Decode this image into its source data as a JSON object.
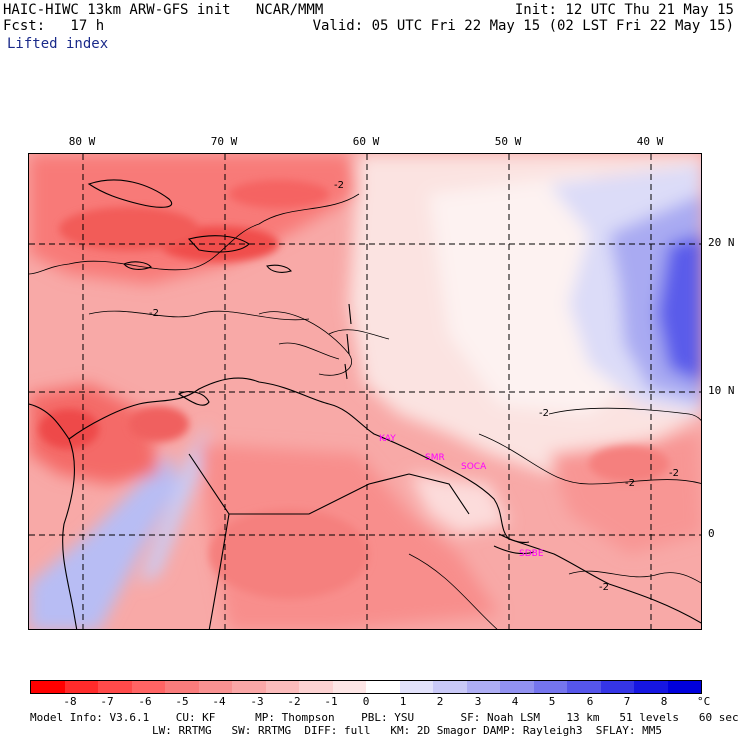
{
  "header": {
    "model_title": "HAIC-HIWC 13km ARW-GFS init   NCAR/MMM",
    "init_time": "Init: 12 UTC Thu 21 May 15",
    "forecast": "Fcst:   17 h",
    "valid_time": "Valid: 05 UTC Fri 22 May 15 (02 LST Fri 22 May 15)",
    "field_name": "Lifted index"
  },
  "map": {
    "lon_labels": [
      "80 W",
      "70 W",
      "60 W",
      "50 W",
      "40 W"
    ],
    "lat_labels": [
      "20 N",
      "10 N",
      "0"
    ],
    "contour_labels": [
      "-2",
      "-2",
      "-2",
      "-2",
      "-2",
      "-2"
    ],
    "cities": [
      "KAY",
      "SMR",
      "SOCA",
      "SDBE"
    ],
    "colors": {
      "strong_negative": "#ff4a4a",
      "moderate_negative": "#f98b8b",
      "weak_negative": "#fbd0cf",
      "neutral": "#fdf5f4",
      "weak_positive": "#d8daf8",
      "moderate_positive": "#8f8ff0",
      "strong_positive": "#3b3bf0",
      "grid": "#000000",
      "coast": "#000000",
      "city": "#ff00ff"
    }
  },
  "colorbar": {
    "ticks": [
      "-8",
      "-7",
      "-6",
      "-5",
      "-4",
      "-3",
      "-2",
      "-1",
      "0",
      "1",
      "2",
      "3",
      "4",
      "5",
      "6",
      "7",
      "8"
    ],
    "unit": "°C",
    "colors": [
      "#ff0000",
      "#ff2b2b",
      "#ff4a4a",
      "#ff6464",
      "#fa7c7c",
      "#f99292",
      "#faa7a7",
      "#fbbcbc",
      "#fcd2d2",
      "#fde6e6",
      "#ffffff",
      "#e2e2fb",
      "#c9c9f7",
      "#aeaef4",
      "#9292f1",
      "#7575ee",
      "#5656ea",
      "#3535e6",
      "#1616e2",
      "#0000dd"
    ]
  },
  "info": {
    "line1": "Model Info: V3.6.1    CU: KF      MP: Thompson    PBL: YSU       SF: Noah LSM    13 km   51 levels   60 sec",
    "line2": "LW: RRTMG   SW: RRTMG  DIFF: full   KM: 2D Smagor DAMP: Rayleigh3  SFLAY: MM5"
  }
}
